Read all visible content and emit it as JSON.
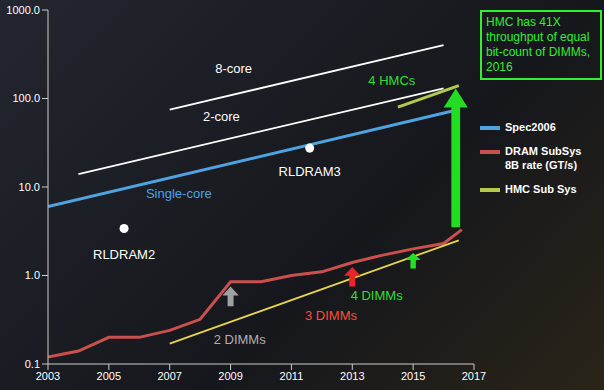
{
  "chart_data": {
    "type": "line",
    "log": "y",
    "grid": false,
    "legend": "right",
    "xlim": [
      2003,
      2017
    ],
    "xticks": [
      2003,
      2005,
      2007,
      2009,
      2011,
      2013,
      2015,
      2017
    ],
    "ylim": [
      0.1,
      1000
    ],
    "yticks": [
      0.1,
      {
        "value": 1,
        "label": "1.0"
      },
      {
        "value": 10,
        "label": "10.0"
      },
      {
        "value": 100,
        "label": "100.0"
      },
      {
        "value": 1000,
        "label": "1000.0"
      }
    ],
    "series": [
      {
        "name": "Spec2006",
        "color": "#4fa3e0",
        "x": [
          2003,
          2016.5
        ],
        "values": [
          6,
          75
        ]
      },
      {
        "color": "#ffffff",
        "x": [
          2004,
          2016
        ],
        "values": [
          14,
          130
        ]
      },
      {
        "color": "#ffffff",
        "x": [
          2007,
          2016
        ],
        "values": [
          75,
          400
        ]
      },
      {
        "name": "DRAM SubSys 8B rate (GT/s)",
        "color": "#c9504c",
        "x": [
          2003,
          2004,
          2005,
          2006,
          2007,
          2008,
          2009,
          2010,
          2011,
          2012,
          2013,
          2014,
          2015,
          2016,
          2016.6
        ],
        "values": [
          0.12,
          0.14,
          0.2,
          0.2,
          0.24,
          0.32,
          0.85,
          0.85,
          1.0,
          1.1,
          1.4,
          1.7,
          2.0,
          2.3,
          3.3
        ]
      },
      {
        "name": "HMC Sub Sys",
        "color": "#b5c94a",
        "x": [
          2014.5,
          2016.5
        ],
        "values": [
          80,
          140
        ]
      },
      {
        "color": "#e8d44d",
        "x": [
          2007,
          2016.5
        ],
        "values": [
          0.17,
          2.5
        ]
      },
      {
        "type": "scatter",
        "color": "#ffffff",
        "x": [
          2005.5,
          2011.6
        ],
        "values": [
          3.4,
          27.5
        ]
      }
    ],
    "annotations": [
      {
        "text": "8-core",
        "x": 2009.1,
        "y": 220,
        "color": "#ffffff"
      },
      {
        "text": "2-core",
        "x": 2008.7,
        "y": 62,
        "color": "#ffffff"
      },
      {
        "text": "Single-core",
        "x": 2007.3,
        "y": 8.5,
        "color": "#4fa3e0"
      },
      {
        "text": "RLDRAM2",
        "x": 2005.5,
        "y": 1.74,
        "color": "#ffffff"
      },
      {
        "text": "RLDRAM3",
        "x": 2011.6,
        "y": 15,
        "color": "#ffffff"
      },
      {
        "text": "4 HMCs",
        "x": 2014.3,
        "y": 160,
        "color": "#33dd33"
      },
      {
        "text": "2 DIMMs",
        "x": 2009.3,
        "y": 0.19,
        "color": "#b0b0b0"
      },
      {
        "text": "3 DIMMs",
        "x": 2012.3,
        "y": 0.35,
        "color": "#ff4d3a"
      },
      {
        "text": "4 DIMMs",
        "x": 2013.8,
        "y": 0.6,
        "color": "#33dd33"
      }
    ],
    "arrows": [
      {
        "x": 2009,
        "from": 0.45,
        "to": 0.75,
        "color": "#a0a0a0"
      },
      {
        "x": 2013,
        "from": 0.75,
        "to": 1.25,
        "color": "#e8262a"
      },
      {
        "x": 2015,
        "from": 1.2,
        "to": 1.8,
        "color": "#22e022"
      },
      {
        "x": 2016.4,
        "from": 3.5,
        "to": 130,
        "color": "#22dd22"
      }
    ],
    "callout": {
      "text": "HMC has 41X throughput of equal bit-count of DIMMs, 2016",
      "color": "#33ee33"
    }
  }
}
